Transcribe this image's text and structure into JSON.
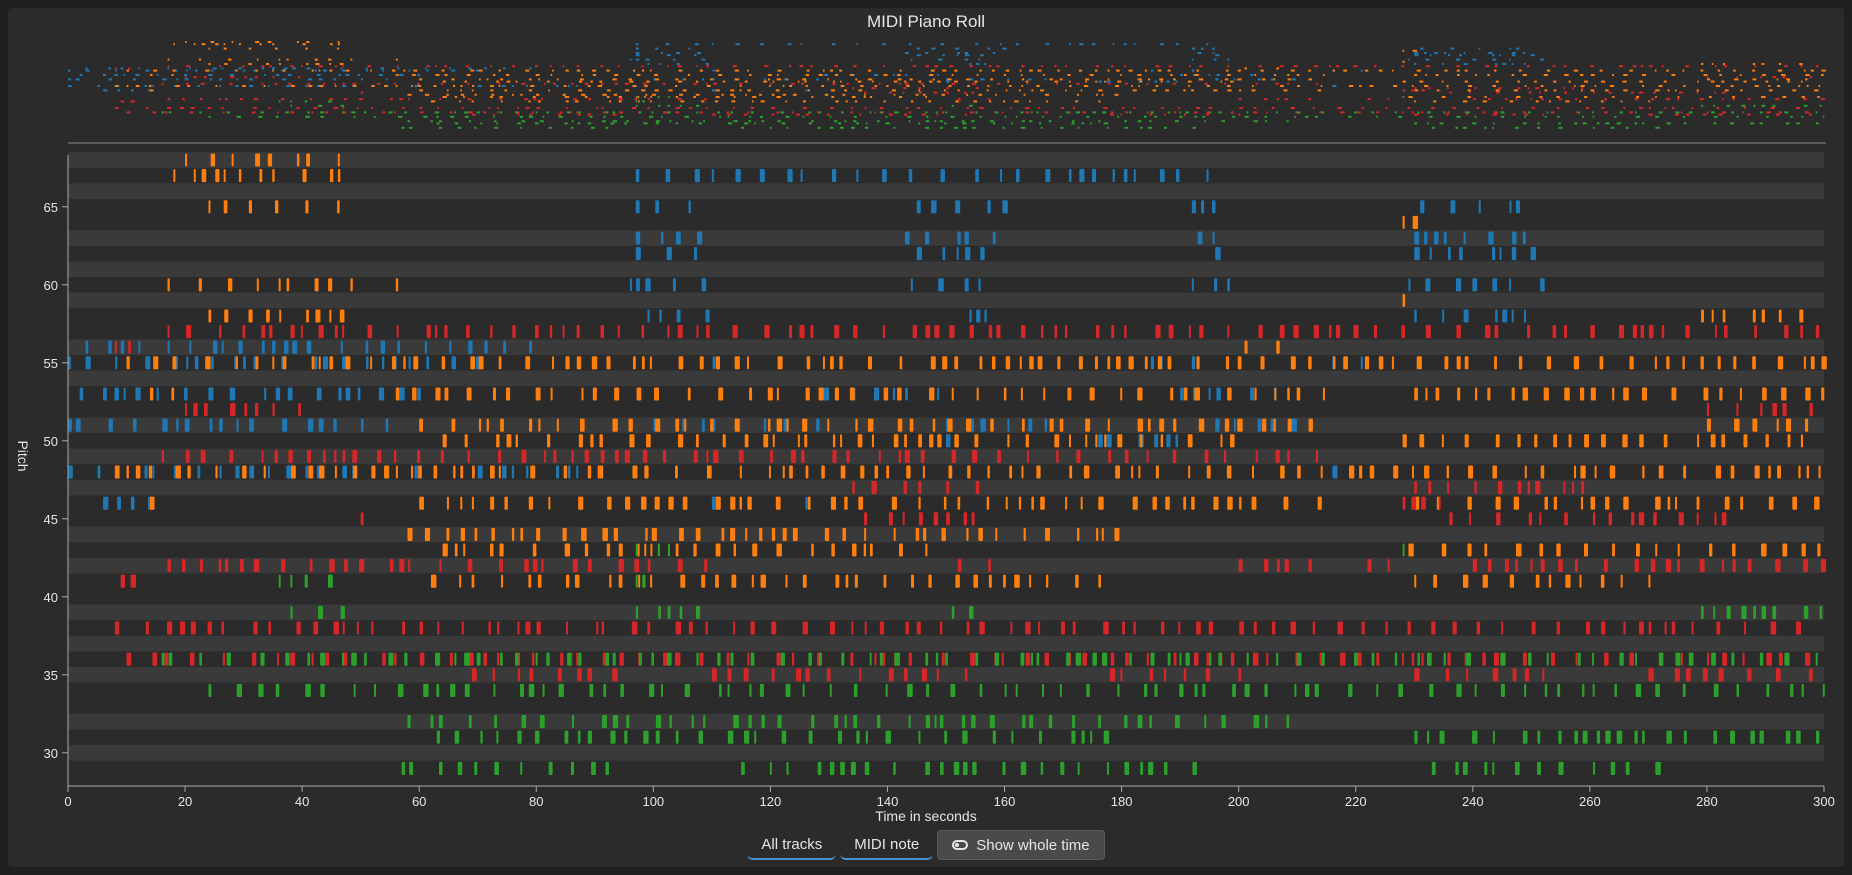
{
  "chart_data": {
    "type": "scatter",
    "title": "MIDI Piano Roll",
    "xlabel": "Time in seconds",
    "ylabel": "Pitch",
    "xlim": [
      0,
      300
    ],
    "ylim": [
      28,
      68
    ],
    "x_ticks": [
      0,
      20,
      40,
      60,
      80,
      100,
      120,
      140,
      160,
      180,
      200,
      220,
      240,
      260,
      280,
      300
    ],
    "y_ticks": [
      30,
      35,
      40,
      45,
      50,
      55,
      60,
      65
    ],
    "black_key_rows": [
      30,
      32,
      35,
      37,
      39,
      42,
      44,
      47,
      49,
      51,
      54,
      56,
      59,
      61,
      63,
      66,
      68
    ],
    "series": [
      {
        "color": "#1f77b4",
        "tracks": [
          {
            "pitch": 67,
            "segments": [
              [
                97,
                150
              ],
              [
                155,
                195
              ]
            ]
          },
          {
            "pitch": 65,
            "segments": [
              [
                97,
                108
              ],
              [
                145,
                160
              ],
              [
                192,
                196
              ],
              [
                231,
                250
              ]
            ]
          },
          {
            "pitch": 63,
            "segments": [
              [
                97,
                110
              ],
              [
                143,
                158
              ],
              [
                193,
                197
              ],
              [
                230,
                252
              ]
            ]
          },
          {
            "pitch": 62,
            "segments": [
              [
                97,
                110
              ],
              [
                145,
                158
              ],
              [
                196,
                198
              ],
              [
                230,
                252
              ]
            ]
          },
          {
            "pitch": 60,
            "segments": [
              [
                96,
                110
              ],
              [
                144,
                158
              ],
              [
                192,
                199
              ],
              [
                229,
                253
              ]
            ]
          },
          {
            "pitch": 58,
            "segments": [
              [
                99,
                110
              ],
              [
                154,
                158
              ],
              [
                230,
                250
              ]
            ]
          },
          {
            "pitch": 56,
            "segments": [
              [
                3,
                80
              ]
            ]
          },
          {
            "pitch": 55,
            "segments": [
              [
                0,
                70
              ],
              [
                108,
                112
              ],
              [
                185,
                196
              ],
              [
                216,
                222
              ]
            ]
          },
          {
            "pitch": 53,
            "segments": [
              [
                2,
                60
              ],
              [
                126,
                150
              ],
              [
                190,
                210
              ]
            ]
          },
          {
            "pitch": 51,
            "segments": [
              [
                0,
                58
              ],
              [
                100,
                130
              ],
              [
                150,
                170
              ],
              [
                196,
                212
              ]
            ]
          },
          {
            "pitch": 50,
            "segments": [
              [
                150,
                152
              ],
              [
                176,
                190
              ]
            ]
          },
          {
            "pitch": 48,
            "segments": [
              [
                0,
                60
              ],
              [
                70,
                90
              ],
              [
                216,
                222
              ]
            ]
          },
          {
            "pitch": 46,
            "segments": [
              [
                6,
                18
              ],
              [
                110,
                116
              ],
              [
                126,
                132
              ]
            ]
          }
        ]
      },
      {
        "color": "#ff7f0e",
        "tracks": [
          {
            "pitch": 68,
            "segments": [
              [
                20,
                48
              ]
            ]
          },
          {
            "pitch": 67,
            "segments": [
              [
                18,
                50
              ]
            ]
          },
          {
            "pitch": 65,
            "segments": [
              [
                24,
                50
              ]
            ]
          },
          {
            "pitch": 64,
            "segments": [
              [
                228,
                230
              ]
            ]
          },
          {
            "pitch": 60,
            "segments": [
              [
                17,
                50
              ],
              [
                56,
                58
              ]
            ]
          },
          {
            "pitch": 59,
            "segments": [
              [
                228,
                230
              ]
            ]
          },
          {
            "pitch": 58,
            "segments": [
              [
                24,
                50
              ],
              [
                279,
                298
              ]
            ]
          },
          {
            "pitch": 56,
            "segments": [
              [
                201,
                210
              ]
            ]
          },
          {
            "pitch": 55,
            "segments": [
              [
                10,
                300
              ]
            ]
          },
          {
            "pitch": 53,
            "segments": [
              [
                14,
                18
              ],
              [
                56,
                215
              ],
              [
                230,
                300
              ]
            ]
          },
          {
            "pitch": 51,
            "segments": [
              [
                60,
                215
              ],
              [
                280,
                300
              ]
            ]
          },
          {
            "pitch": 50,
            "segments": [
              [
                64,
                200
              ],
              [
                228,
                300
              ]
            ]
          },
          {
            "pitch": 48,
            "segments": [
              [
                8,
                300
              ]
            ]
          },
          {
            "pitch": 46,
            "segments": [
              [
                14,
                16
              ],
              [
                60,
                215
              ],
              [
                230,
                300
              ]
            ]
          },
          {
            "pitch": 44,
            "segments": [
              [
                58,
                180
              ]
            ]
          },
          {
            "pitch": 43,
            "segments": [
              [
                64,
                150
              ],
              [
                229,
                300
              ]
            ]
          },
          {
            "pitch": 41,
            "segments": [
              [
                62,
                180
              ],
              [
                230,
                272
              ]
            ]
          }
        ]
      },
      {
        "color": "#d62728",
        "tracks": [
          {
            "pitch": 57,
            "segments": [
              [
                17,
                300
              ]
            ]
          },
          {
            "pitch": 56,
            "segments": [
              [
                8,
                12
              ]
            ]
          },
          {
            "pitch": 52,
            "segments": [
              [
                20,
                40
              ],
              [
                280,
                300
              ]
            ]
          },
          {
            "pitch": 49,
            "segments": [
              [
                16,
                216
              ]
            ]
          },
          {
            "pitch": 47,
            "segments": [
              [
                134,
                156
              ],
              [
                230,
                260
              ]
            ]
          },
          {
            "pitch": 46,
            "segments": [
              [
                228,
                236
              ]
            ]
          },
          {
            "pitch": 45,
            "segments": [
              [
                50,
                52
              ],
              [
                136,
                156
              ],
              [
                236,
                285
              ]
            ]
          },
          {
            "pitch": 42,
            "segments": [
              [
                17,
                50
              ],
              [
                55,
                110
              ],
              [
                152,
                158
              ],
              [
                200,
                212
              ],
              [
                222,
                228
              ],
              [
                240,
                300
              ]
            ]
          },
          {
            "pitch": 41,
            "segments": [
              [
                9,
                16
              ]
            ]
          },
          {
            "pitch": 38,
            "segments": [
              [
                8,
                300
              ]
            ]
          },
          {
            "pitch": 36,
            "segments": [
              [
                10,
                300
              ]
            ]
          },
          {
            "pitch": 35,
            "segments": [
              [
                69,
                95
              ],
              [
                110,
                158
              ],
              [
                178,
                200
              ],
              [
                230,
                252
              ],
              [
                270,
                300
              ]
            ]
          }
        ]
      },
      {
        "color": "#2ca02c",
        "tracks": [
          {
            "pitch": 43,
            "segments": [
              [
                97,
                106
              ],
              [
                228,
                230
              ]
            ]
          },
          {
            "pitch": 41,
            "segments": [
              [
                36,
                47
              ],
              [
                97,
                103
              ]
            ]
          },
          {
            "pitch": 39,
            "segments": [
              [
                38,
                49
              ],
              [
                97,
                108
              ],
              [
                151,
                156
              ],
              [
                279,
                300
              ]
            ]
          },
          {
            "pitch": 36,
            "segments": [
              [
                16,
                300
              ]
            ]
          },
          {
            "pitch": 34,
            "segments": [
              [
                24,
                300
              ]
            ]
          },
          {
            "pitch": 32,
            "segments": [
              [
                58,
                210
              ]
            ]
          },
          {
            "pitch": 31,
            "segments": [
              [
                63,
                180
              ],
              [
                230,
                300
              ]
            ]
          },
          {
            "pitch": 29,
            "segments": [
              [
                57,
                93
              ],
              [
                115,
                195
              ],
              [
                233,
                272
              ]
            ]
          }
        ]
      }
    ]
  },
  "controls": {
    "all_tracks": "All tracks",
    "midi_note": "MIDI note",
    "show_whole_time": "Show whole time"
  }
}
